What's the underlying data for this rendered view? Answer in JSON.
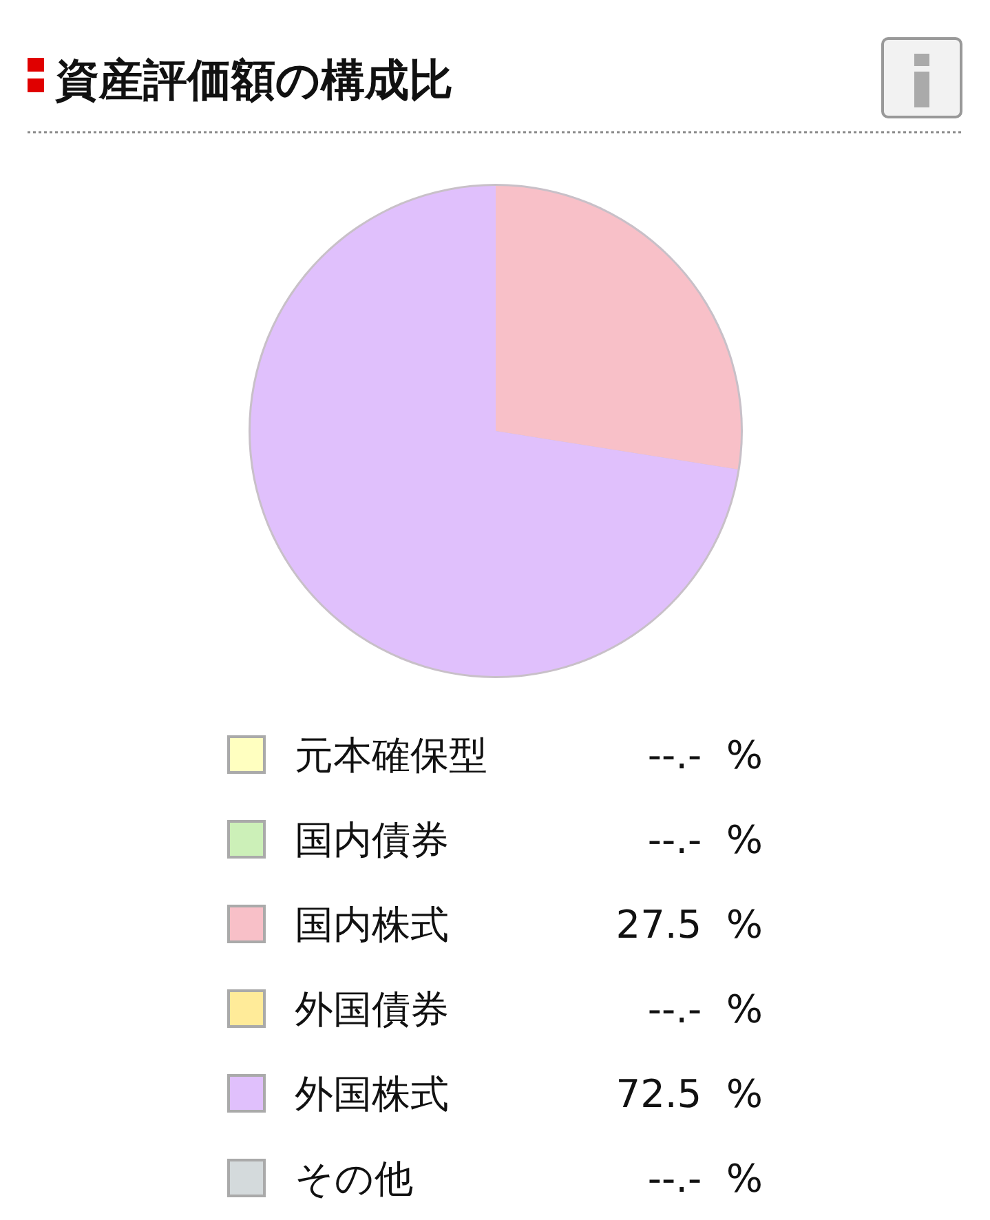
{
  "chart_data": {
    "type": "pie",
    "title": "資産評価額の構成比",
    "categories": [
      "元本確保型",
      "国内債券",
      "国内株式",
      "外国債券",
      "外国株式",
      "その他"
    ],
    "values": [
      null,
      null,
      27.5,
      null,
      72.5,
      null
    ],
    "value_labels": [
      "--.-  %",
      "--.-  %",
      "27.5  %",
      "--.-  %",
      "72.5  %",
      "--.-  %"
    ],
    "colors": [
      "#ffffc0",
      "#ccf0b8",
      "#f8c0c8",
      "#ffeb99",
      "#e0c0fc",
      "#d4dadc"
    ],
    "legend": "bottom"
  }
}
